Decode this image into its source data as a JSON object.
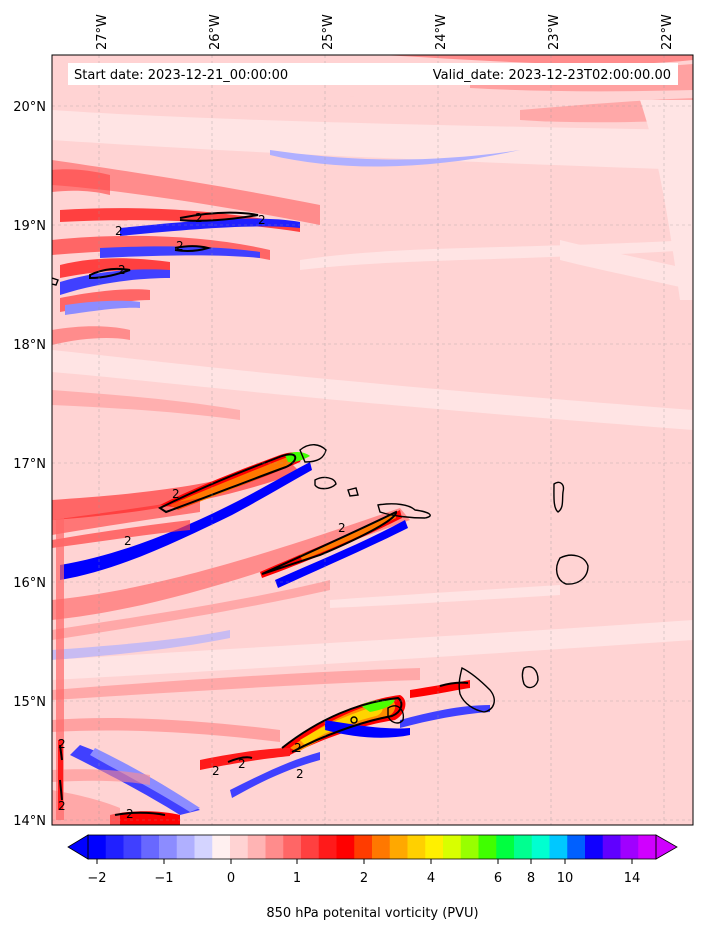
{
  "map": {
    "start_label": "Start date: 2023-12-21_00:00:00",
    "valid_label": "Valid_date: 2023-12-23T02:00:00.00",
    "contour_label": "2",
    "lon_ticks": [
      "27°W",
      "26°W",
      "25°W",
      "24°W",
      "23°W",
      "22°W"
    ],
    "lat_ticks": [
      "20°N",
      "19°N",
      "18°N",
      "17°N",
      "16°N",
      "15°N",
      "14°N"
    ],
    "colors": {
      "background": "#ffd3d3",
      "light_pink": "#ffe4e4",
      "mid_red": "#ff8a8a",
      "strong_red": "#ff2020",
      "orange": "#ff8c00",
      "yellow": "#ffd400",
      "green": "#4cff00",
      "blue": "#0008ff",
      "light_blue": "#b8b8ff",
      "coastline": "#000000"
    }
  },
  "colorbar": {
    "label": "850 hPa potenital vorticity (PVU)",
    "tick_labels": [
      "−2",
      "−1",
      "0",
      "1",
      "2",
      "4",
      "6",
      "8",
      "10",
      "14"
    ],
    "colors": [
      "#0000ff",
      "#2020ff",
      "#4040ff",
      "#6868ff",
      "#8c8cff",
      "#b0b0ff",
      "#d4d4ff",
      "#fff0f0",
      "#ffd3d3",
      "#ffb4b4",
      "#ff8c8c",
      "#ff6666",
      "#ff4040",
      "#ff1a1a",
      "#ff0000",
      "#ff3c00",
      "#ff7800",
      "#ffa800",
      "#ffd000",
      "#fff000",
      "#d8ff00",
      "#98ff00",
      "#40ff00",
      "#00ff40",
      "#00ff90",
      "#00ffd0",
      "#00c8ff",
      "#0060ff",
      "#1000ff",
      "#6000ff",
      "#a000ff",
      "#d000ff"
    ]
  }
}
